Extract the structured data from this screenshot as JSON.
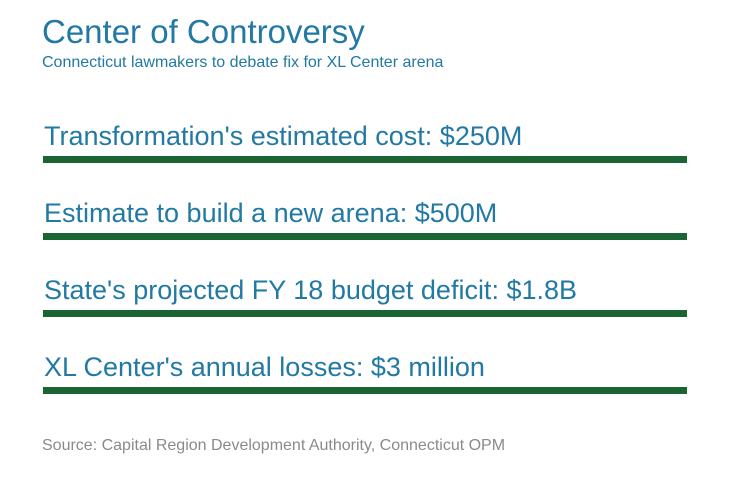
{
  "header": {
    "title": "Center of Controversy",
    "subtitle": "Connecticut lawmakers to debate fix for XL Center arena"
  },
  "facts": [
    {
      "text": "Transformation's estimated cost: $250M"
    },
    {
      "text": "Estimate to build a new arena: $500M"
    },
    {
      "text": "State's projected FY 18 budget deficit: $1.8B"
    },
    {
      "text": "XL Center's annual losses: $3 million"
    }
  ],
  "source": "Source: Capital Region Development Authority, Connecticut OPM",
  "colors": {
    "accent_teal": "#2279a3",
    "bar_green": "#1b6434",
    "source_gray": "#8a8a8a",
    "background": "#ffffff"
  },
  "chart_data": {
    "type": "table",
    "title": "Center of Controversy",
    "subtitle": "Connecticut lawmakers to debate fix for XL Center arena",
    "rows": [
      {
        "label": "Transformation's estimated cost",
        "value": "$250M"
      },
      {
        "label": "Estimate to build a new arena",
        "value": "$500M"
      },
      {
        "label": "State's projected FY 18 budget deficit",
        "value": "$1.8B"
      },
      {
        "label": "XL Center's annual losses",
        "value": "$3 million"
      }
    ],
    "source": "Capital Region Development Authority, Connecticut OPM",
    "layout": "headline with four underlined fact lines, source footer"
  }
}
